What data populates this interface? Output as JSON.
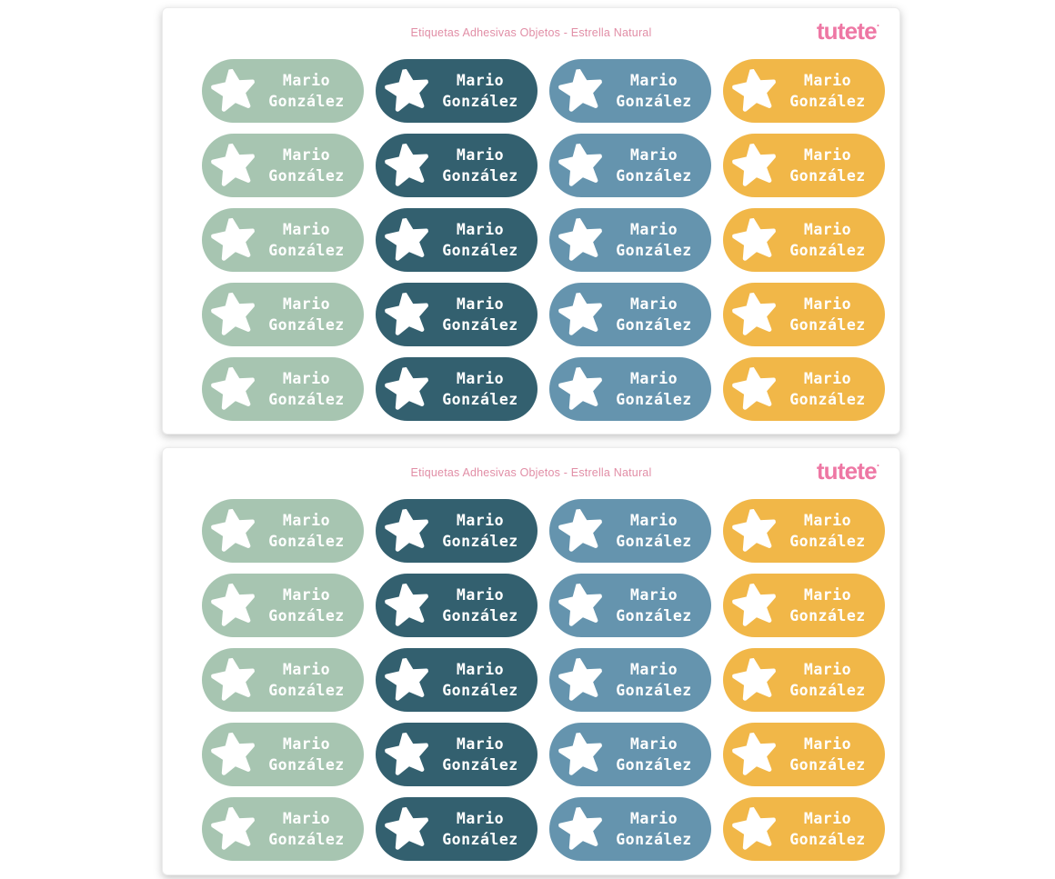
{
  "brand": {
    "logo_text": "tutete",
    "logo_mark": "·",
    "logo_color": "#ee77a4"
  },
  "sheets": [
    {
      "title": "Etiquetas Adhesivas Objetos - Estrella Natural"
    },
    {
      "title": "Etiquetas Adhesivas Objetos - Estrella Natural"
    }
  ],
  "title_color": "#e18ea6",
  "label": {
    "line1": "Mario",
    "line2": "González",
    "text_color": "#ffffff",
    "icon": "star-icon",
    "icon_color": "#ffffff"
  },
  "label_colors": [
    {
      "name": "sage-green",
      "hex": "#a7c5b1"
    },
    {
      "name": "dark-teal",
      "hex": "#33606f"
    },
    {
      "name": "steel-blue",
      "hex": "#6594ae"
    },
    {
      "name": "amber-yellow",
      "hex": "#f1b748"
    }
  ],
  "grid": {
    "rows_per_sheet": 5,
    "columns_per_sheet": 4
  }
}
